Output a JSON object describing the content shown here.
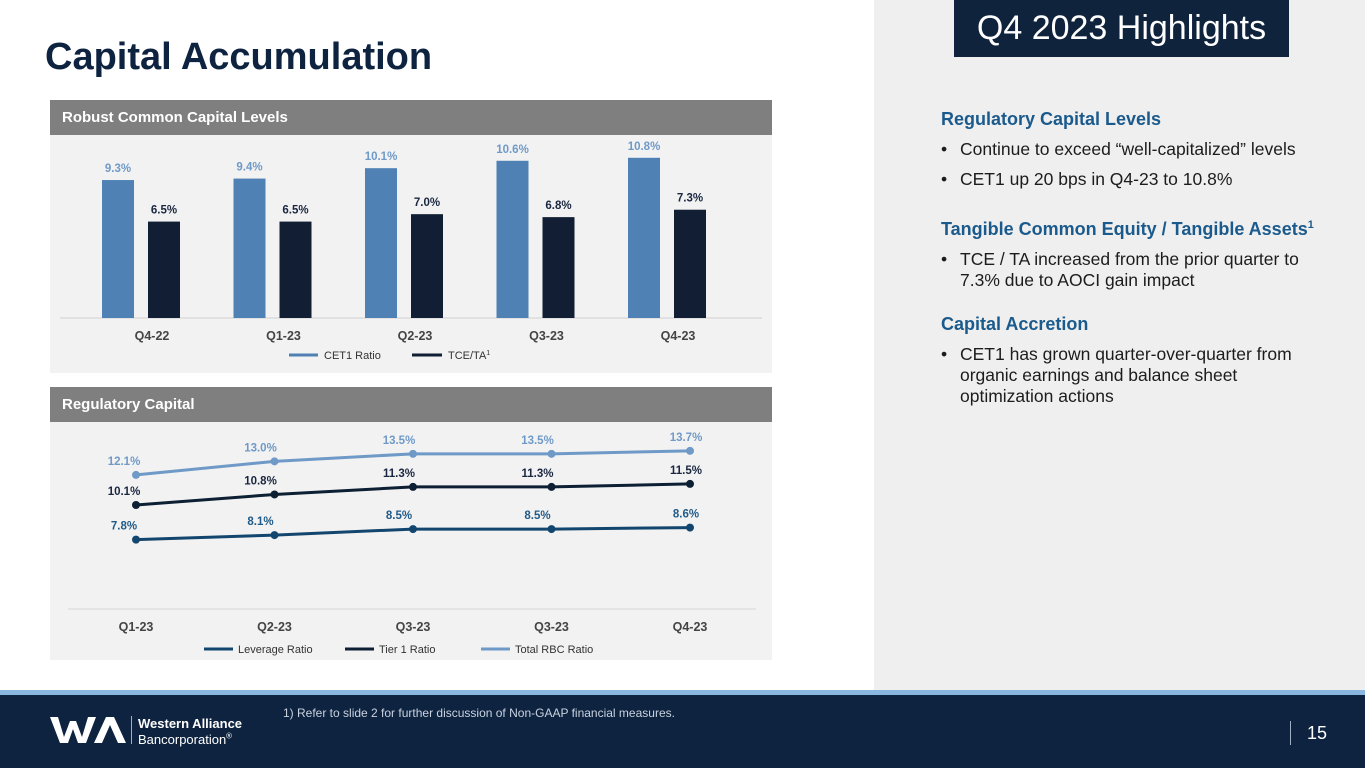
{
  "slide": {
    "title": "Capital Accumulation",
    "badge": "Q4 2023 Highlights",
    "page_number": "15",
    "footnote": "1)    Refer to slide 2 for further discussion of Non-GAAP financial measures.",
    "logo": {
      "line1": "Western Alliance",
      "line2": "Bancorporation",
      "registered": "®"
    }
  },
  "highlights": {
    "sections": [
      {
        "heading": "Regulatory Capital Levels",
        "bullets": [
          "Continue to exceed “well-capitalized” levels",
          "CET1 up 20 bps in Q4-23 to 10.8%"
        ]
      },
      {
        "heading": "Tangible Common Equity / Tangible Assets",
        "heading_sup": "1",
        "bullets": [
          "TCE / TA increased from the prior quarter to 7.3% due to AOCI gain impact"
        ]
      },
      {
        "heading": "Capital Accretion",
        "bullets": [
          "CET1 has grown quarter-over-quarter from organic earnings and balance sheet optimization actions"
        ]
      }
    ],
    "bullet_glyph": "•"
  },
  "colors": {
    "navy": "#0e2340",
    "cet1_blue": "#4f81b5",
    "tce_navy": "#111e33",
    "leverage": "#13466e",
    "tier1": "#0d1f33",
    "total_rbc": "#6f9ac8"
  },
  "chart_data": [
    {
      "type": "bar",
      "title": "Robust Common Capital Levels",
      "categories": [
        "Q4-22",
        "Q1-23",
        "Q2-23",
        "Q3-23",
        "Q4-23"
      ],
      "series": [
        {
          "name": "CET1 Ratio",
          "values": [
            9.3,
            9.4,
            10.1,
            10.6,
            10.8
          ],
          "labels": [
            "9.3%",
            "9.4%",
            "10.1%",
            "10.6%",
            "10.8%"
          ],
          "color": "#4f81b5"
        },
        {
          "name": "TCE/TA",
          "name_sup": "1",
          "values": [
            6.5,
            6.5,
            7.0,
            6.8,
            7.3
          ],
          "labels": [
            "6.5%",
            "6.5%",
            "7.0%",
            "6.8%",
            "7.3%"
          ],
          "color": "#111e33"
        }
      ],
      "ylim": [
        0,
        12
      ],
      "legend": "bottom"
    },
    {
      "type": "line",
      "title": "Regulatory Capital",
      "categories": [
        "Q1-23",
        "Q2-23",
        "Q3-23",
        "Q3-23",
        "Q4-23"
      ],
      "series": [
        {
          "name": "Total RBC Ratio",
          "values": [
            12.1,
            13.0,
            13.5,
            13.5,
            13.7
          ],
          "labels": [
            "12.1%",
            "13.0%",
            "13.5%",
            "13.5%",
            "13.7%"
          ],
          "color": "#6f9ac8"
        },
        {
          "name": "Tier 1 Ratio",
          "values": [
            10.1,
            10.8,
            11.3,
            11.3,
            11.5
          ],
          "labels": [
            "10.1%",
            "10.8%",
            "11.3%",
            "11.3%",
            "11.5%"
          ],
          "color": "#0d1f33"
        },
        {
          "name": "Leverage Ratio",
          "values": [
            7.8,
            8.1,
            8.5,
            8.5,
            8.6
          ],
          "labels": [
            "7.8%",
            "8.1%",
            "8.5%",
            "8.5%",
            "8.6%"
          ],
          "color": "#13466e"
        }
      ],
      "legend_order": [
        "Leverage Ratio",
        "Tier 1 Ratio",
        "Total RBC Ratio"
      ],
      "legend": "bottom"
    }
  ]
}
